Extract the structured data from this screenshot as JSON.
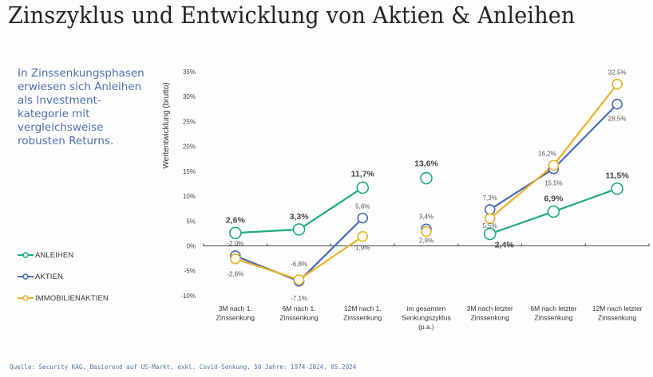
{
  "page": {
    "title": "Zinszyklus und Entwicklung von Aktien & Anleihen",
    "intro": "In Zinssenkungsphasen\nerwiesen sich Anleihen\nals Investment-\nkategorie mit\nvergleichsweise\nrobusten Returns.",
    "source": "Quelle: Security KAG, Basierend auf US-Markt, exkl. Covid-Senkung, 50 Jahre: 1974-2024, 05.2024"
  },
  "legend": [
    {
      "label": "ANLEIHEN",
      "color": "#1dab7e"
    },
    {
      "label": "AKTIEN",
      "color": "#4a6ab5"
    },
    {
      "label": "IMMOBILIENAKTIEN",
      "color": "#eab22a"
    }
  ],
  "chart_data": {
    "type": "line",
    "title": "Zinszyklus und Entwicklung von Aktien & Anleihen",
    "xlabel": "",
    "ylabel": "Wertentwicklung (brutto)",
    "ylim": [
      -10,
      35
    ],
    "yticks": [
      35,
      30,
      25,
      20,
      15,
      10,
      5,
      0,
      -5,
      -10
    ],
    "ytick_labels": [
      "35%",
      "30%",
      "25%",
      "20%",
      "15%",
      "10%",
      "5%",
      "0%",
      "-5%",
      "-10%"
    ],
    "grid": false,
    "legend_position": "left",
    "categories": [
      [
        "3M nach 1.",
        "Zinssenkung"
      ],
      [
        "6M nach 1.",
        "Zinssenkung"
      ],
      [
        "12M nach 1.",
        "Zinssenkung"
      ],
      [
        "im gesamten",
        "Senkungszyklus",
        "(p.a.)"
      ],
      [
        "3M nach letzter",
        "Zinssenkung"
      ],
      [
        "6M nach letzter",
        "Zinssenkung"
      ],
      [
        "12M nach letzter",
        "Zinssenkung"
      ]
    ],
    "series": [
      {
        "name": "ANLEIHEN",
        "color": "#1dab7e",
        "values": [
          2.6,
          3.3,
          11.7,
          13.6,
          2.4,
          6.9,
          11.5
        ],
        "labels": [
          "2,6%",
          "3,3%",
          "11,7%",
          "13,6%",
          "2,4%",
          "6,9%",
          "11,5%"
        ],
        "segments": [
          [
            0,
            2
          ],
          [
            4,
            6
          ]
        ]
      },
      {
        "name": "AKTIEN",
        "color": "#4a6ab5",
        "values": [
          -2.0,
          -7.1,
          5.6,
          3.4,
          7.3,
          15.5,
          28.5
        ],
        "labels": [
          "-2,0%",
          "-7,1%",
          "5,6%",
          "3,4%",
          "7,3%",
          "15,5%",
          "28,5%"
        ],
        "segments": [
          [
            0,
            2
          ],
          [
            4,
            6
          ]
        ]
      },
      {
        "name": "IMMOBILIENAKTIEN",
        "color": "#eab22a",
        "values": [
          -2.6,
          -6.8,
          1.9,
          2.9,
          5.5,
          16.2,
          32.5
        ],
        "labels": [
          "-2,6%",
          "-6,8%",
          "1,9%",
          "2,9%",
          "5,5%",
          "16,2%",
          "32,5%"
        ],
        "segments": [
          [
            0,
            2
          ],
          [
            4,
            6
          ]
        ]
      }
    ]
  }
}
